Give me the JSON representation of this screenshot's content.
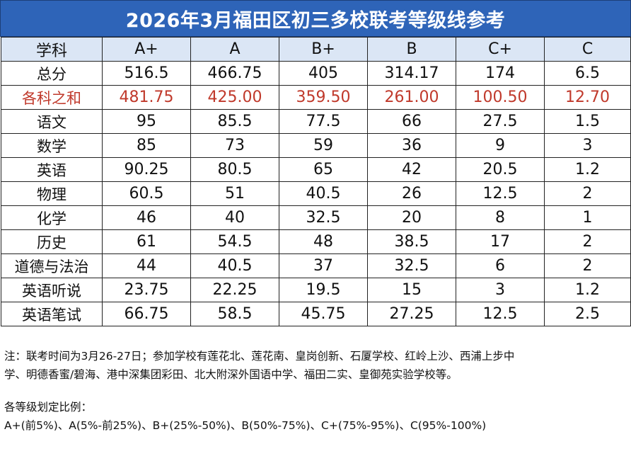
{
  "title": "2026年3月福田区初三多校联考等级线参考",
  "table": {
    "headers": [
      "学科",
      "A+",
      "A",
      "B+",
      "B",
      "C+",
      "C"
    ],
    "rows": [
      {
        "subject": "总分",
        "values": [
          "516.5",
          "466.75",
          "405",
          "314.17",
          "174",
          "6.5"
        ],
        "highlight": false
      },
      {
        "subject": "各科之和",
        "values": [
          "481.75",
          "425.00",
          "359.50",
          "261.00",
          "100.50",
          "12.70"
        ],
        "highlight": true
      },
      {
        "subject": "语文",
        "values": [
          "95",
          "85.5",
          "77.5",
          "66",
          "27.5",
          "1.5"
        ],
        "highlight": false
      },
      {
        "subject": "数学",
        "values": [
          "85",
          "73",
          "59",
          "36",
          "9",
          "3"
        ],
        "highlight": false
      },
      {
        "subject": "英语",
        "values": [
          "90.25",
          "80.5",
          "65",
          "42",
          "20.5",
          "1.2"
        ],
        "highlight": false
      },
      {
        "subject": "物理",
        "values": [
          "60.5",
          "51",
          "40.5",
          "26",
          "12.5",
          "2"
        ],
        "highlight": false
      },
      {
        "subject": "化学",
        "values": [
          "46",
          "40",
          "32.5",
          "20",
          "8",
          "1"
        ],
        "highlight": false
      },
      {
        "subject": "历史",
        "values": [
          "61",
          "54.5",
          "48",
          "38.5",
          "17",
          "2"
        ],
        "highlight": false
      },
      {
        "subject": "道德与法治",
        "values": [
          "44",
          "40.5",
          "37",
          "32.5",
          "6",
          "2"
        ],
        "highlight": false
      },
      {
        "subject": "英语听说",
        "values": [
          "23.75",
          "22.25",
          "19.5",
          "15",
          "3",
          "1.2"
        ],
        "highlight": false
      },
      {
        "subject": "英语笔试",
        "values": [
          "66.75",
          "58.5",
          "45.75",
          "27.25",
          "12.5",
          "2.5"
        ],
        "highlight": false
      }
    ]
  },
  "notes": {
    "line1": "注：联考时间为3月26-27日；参加学校有莲花北、莲花南、皇岗创新、石厦学校、红岭上沙、西浦上步中",
    "line2": "学、明德香蜜/碧海、港中深集团彩田、北大附深外国语中学、福田二实、皇御苑实验学校等。",
    "ratio_heading": "各等级划定比例：",
    "ratio_text": "A+(前5%)、A(5%-前25%)、B+(25%-50%)、B(50%-75%)、C+(75%-95%)、C(95%-100%)"
  },
  "colors": {
    "title_bg": "#2e64b8",
    "header_bg": "#dbe6f5",
    "highlight_text": "#c0392b"
  }
}
